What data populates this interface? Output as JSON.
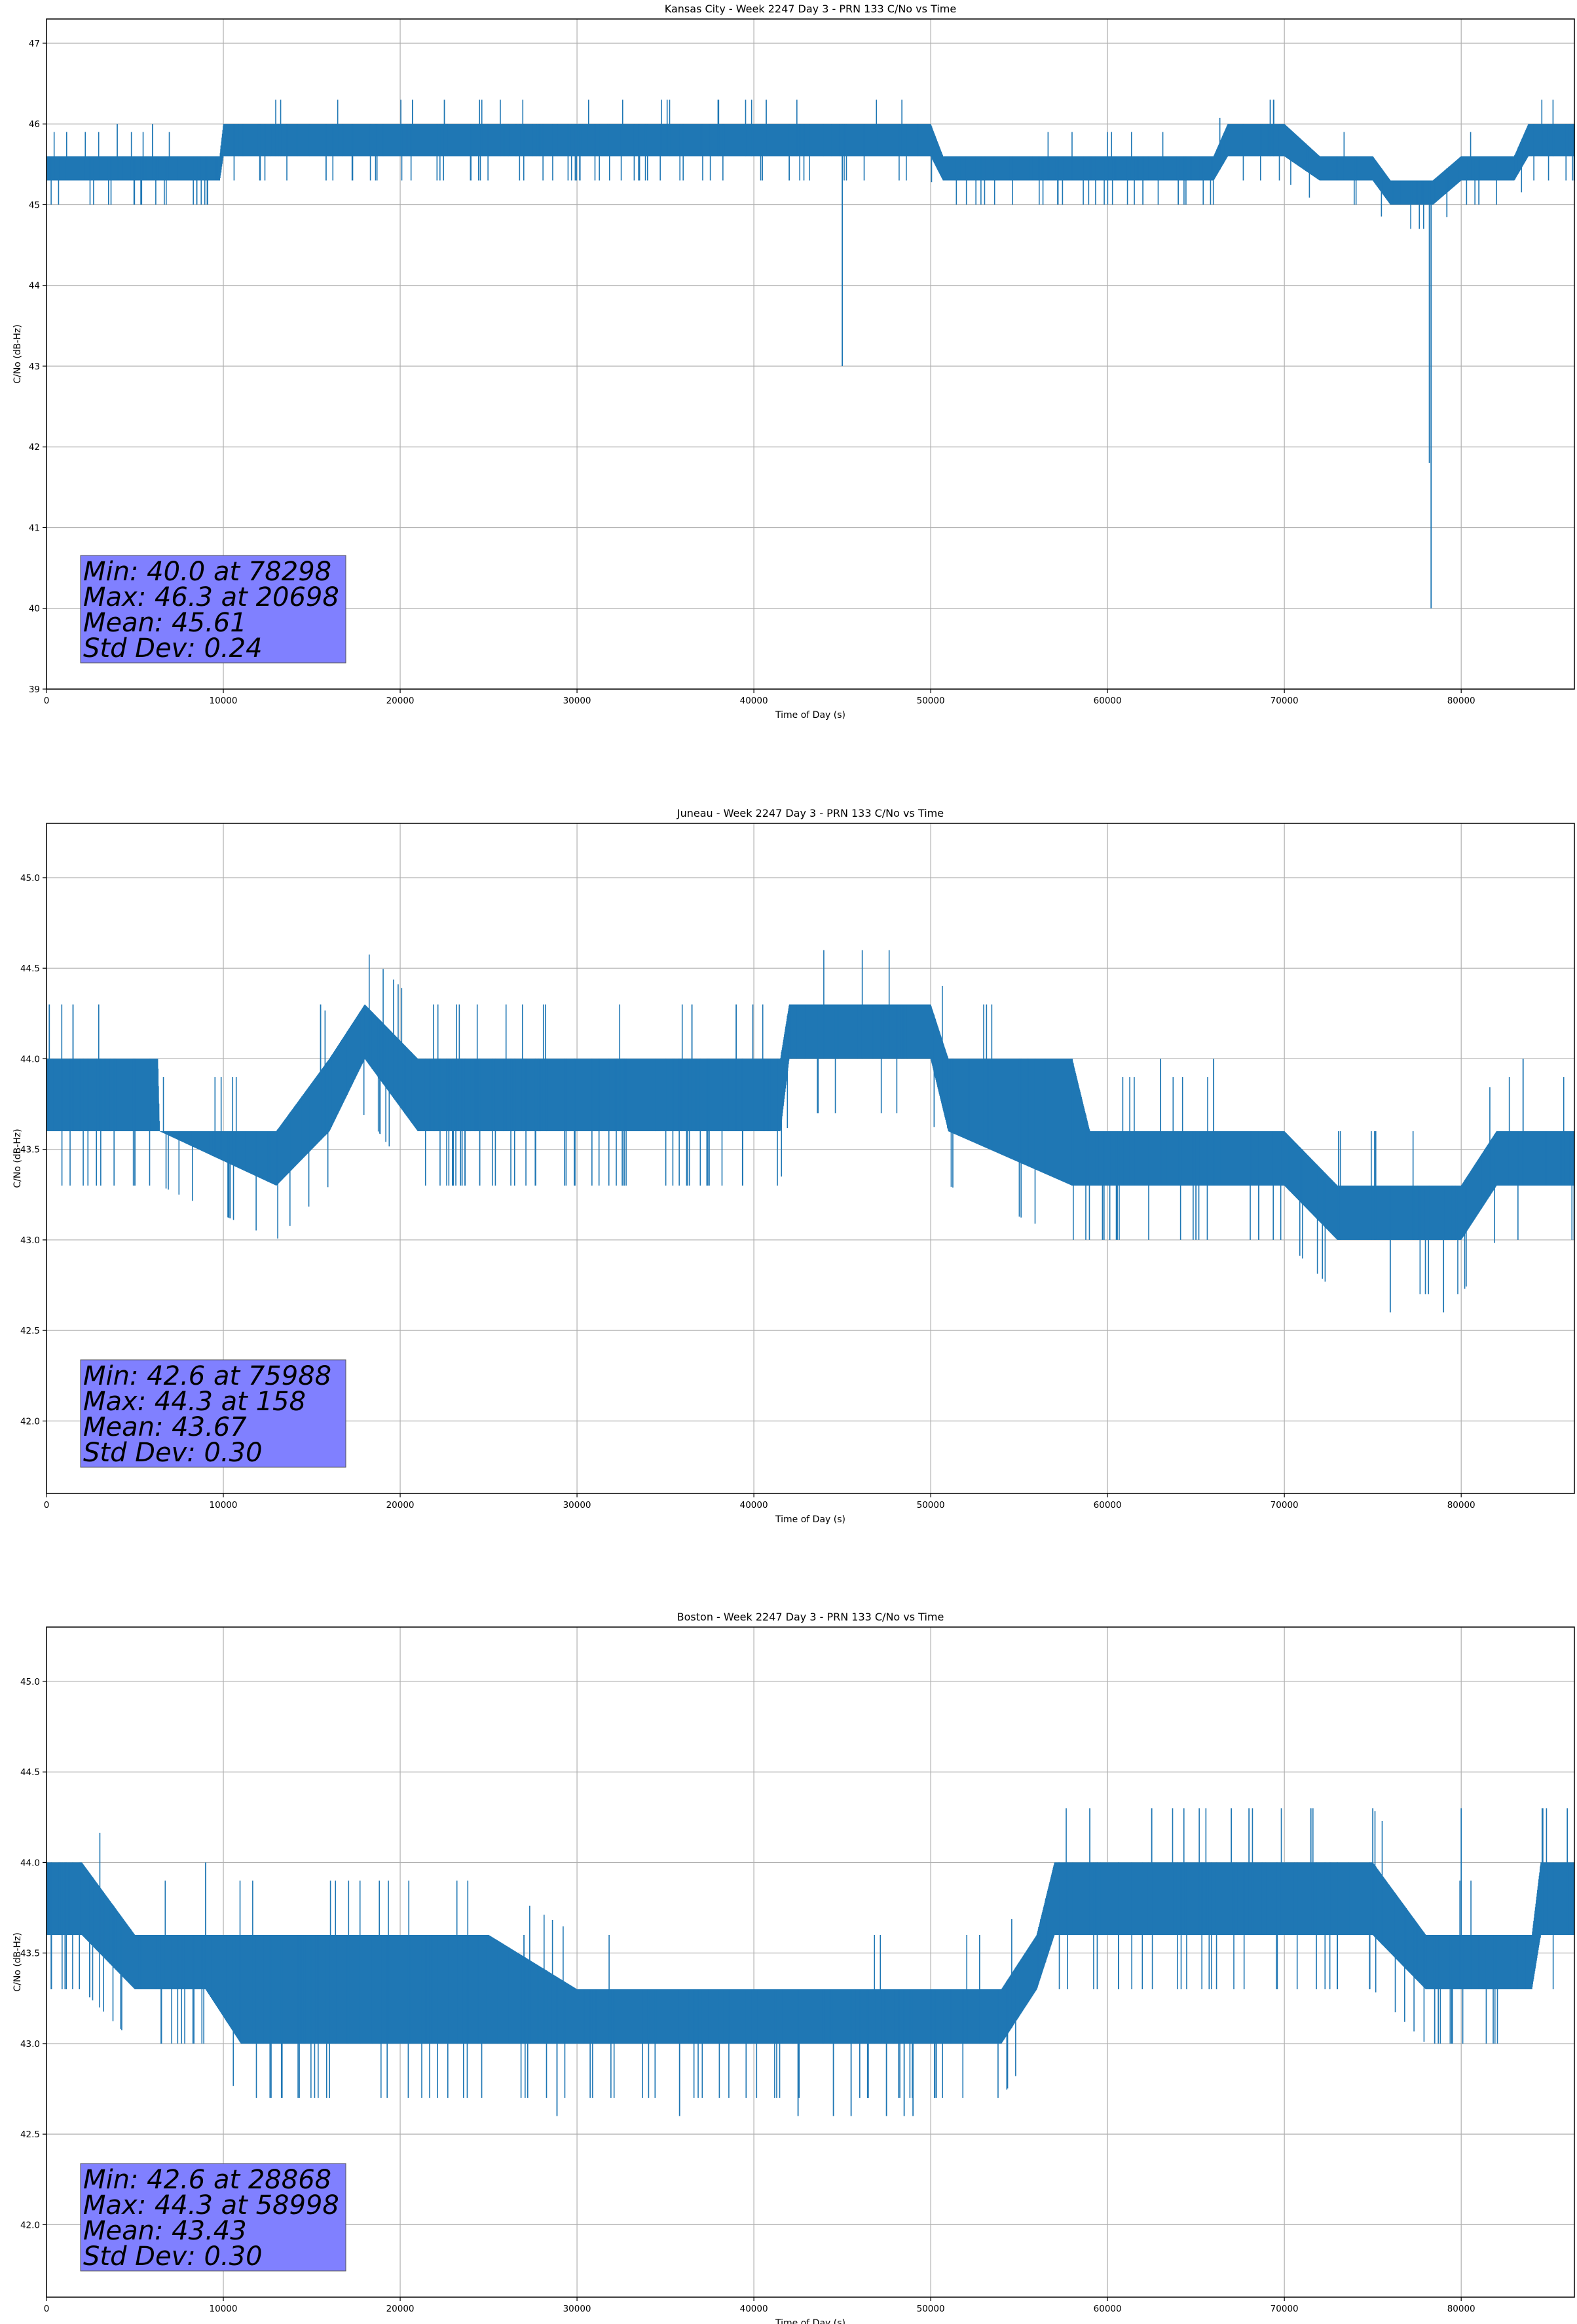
{
  "chart_data": [
    {
      "type": "line",
      "title": "Kansas City - Week 2247 Day 3 - PRN 133 C/No vs Time",
      "xlabel": "Time of Day (s)",
      "ylabel": "C/No (dB-Hz)",
      "xlim": [
        0,
        86400
      ],
      "ylim": [
        39,
        47.3
      ],
      "xticks": [
        0,
        10000,
        20000,
        30000,
        40000,
        50000,
        60000,
        70000,
        80000
      ],
      "yticks": [
        39,
        40,
        41,
        42,
        43,
        44,
        45,
        46,
        47
      ],
      "ytick_labels": [
        "39",
        "40",
        "41",
        "42",
        "43",
        "44",
        "45",
        "46",
        "47"
      ],
      "grid": true,
      "color": "#1f77b4",
      "series": [
        {
          "x": [
            0,
            5000,
            9800,
            10000,
            20000,
            30000,
            40000,
            44900,
            45000,
            45100,
            50000,
            50700,
            55000,
            60000,
            66000,
            66800,
            70000,
            72000,
            75000,
            76000,
            78298,
            78400,
            80000,
            83000,
            83800,
            86400
          ],
          "y": [
            45.5,
            45.5,
            45.5,
            45.8,
            45.8,
            45.8,
            45.8,
            45.8,
            43.0,
            45.8,
            45.8,
            45.5,
            45.5,
            45.5,
            45.5,
            45.8,
            45.8,
            45.5,
            45.5,
            45.2,
            40.0,
            45.2,
            45.4,
            45.5,
            45.8,
            45.8
          ],
          "upper": [
            45.6,
            45.6,
            45.6,
            46.0,
            46.0,
            46.0,
            46.0,
            46.0,
            46.0,
            46.0,
            46.0,
            45.6,
            45.6,
            45.6,
            45.6,
            46.0,
            46.0,
            45.6,
            45.6,
            45.3,
            45.3,
            45.3,
            45.6,
            45.6,
            46.0,
            46.0
          ],
          "lower": [
            45.3,
            45.3,
            45.3,
            45.6,
            45.6,
            45.6,
            45.6,
            45.6,
            45.6,
            45.6,
            45.6,
            45.3,
            45.3,
            45.3,
            45.3,
            45.6,
            45.6,
            45.3,
            45.3,
            45.0,
            45.0,
            45.0,
            45.3,
            45.3,
            45.6,
            45.6
          ],
          "spikes_up": [
            [
              20698,
              46.3
            ],
            [
              22500,
              46.3
            ],
            [
              40700,
              46.3
            ],
            [
              69200,
              46.3
            ],
            [
              69400,
              46.3
            ],
            [
              4000,
              46.0
            ],
            [
              6000,
              46.0
            ],
            [
              57000,
              45.6
            ],
            [
              74000,
              45.6
            ]
          ],
          "spikes_down": [
            [
              45000,
              43.0
            ],
            [
              78298,
              40.0
            ],
            [
              78200,
              41.8
            ],
            [
              24000,
              45.3
            ],
            [
              42000,
              45.3
            ],
            [
              57200,
              45.0
            ],
            [
              62000,
              45.0
            ],
            [
              64000,
              45.0
            ],
            [
              81000,
              45.0
            ]
          ]
        }
      ],
      "annotation": [
        "Min: 40.0 at 78298",
        "Max: 46.3 at 20698",
        "Mean: 45.61",
        "Std Dev: 0.24"
      ]
    },
    {
      "type": "line",
      "title": "Juneau - Week 2247 Day 3 - PRN 133 C/No vs Time",
      "xlabel": "Time of Day (s)",
      "ylabel": "C/No (dB-Hz)",
      "xlim": [
        0,
        86400
      ],
      "ylim": [
        41.6,
        45.3
      ],
      "xticks": [
        0,
        10000,
        20000,
        30000,
        40000,
        50000,
        60000,
        70000,
        80000
      ],
      "yticks": [
        42.0,
        42.5,
        43.0,
        43.5,
        44.0,
        44.5,
        45.0
      ],
      "ytick_labels": [
        "42.0",
        "42.5",
        "43.0",
        "43.5",
        "44.0",
        "44.5",
        "45.0"
      ],
      "grid": true,
      "color": "#1f77b4",
      "series": [
        {
          "x": [
            0,
            6300,
            6400,
            13000,
            16000,
            18000,
            21000,
            30000,
            40000,
            41500,
            42000,
            50000,
            51000,
            58000,
            59000,
            65000,
            70000,
            73000,
            76000,
            80000,
            82000,
            86400
          ],
          "y": [
            43.8,
            43.8,
            43.6,
            43.5,
            43.8,
            44.1,
            43.8,
            43.8,
            43.8,
            43.8,
            44.1,
            44.1,
            43.8,
            43.6,
            43.5,
            43.5,
            43.5,
            43.3,
            43.2,
            43.2,
            43.5,
            43.5
          ],
          "upper": [
            44.0,
            44.0,
            43.6,
            43.6,
            44.0,
            44.3,
            44.0,
            44.0,
            44.0,
            44.0,
            44.3,
            44.3,
            44.0,
            44.0,
            43.6,
            43.6,
            43.6,
            43.3,
            43.3,
            43.3,
            43.6,
            43.6
          ],
          "lower": [
            43.6,
            43.6,
            43.6,
            43.3,
            43.6,
            44.0,
            43.6,
            43.6,
            43.6,
            43.6,
            44.0,
            44.0,
            43.6,
            43.3,
            43.3,
            43.3,
            43.3,
            43.0,
            43.0,
            43.0,
            43.3,
            43.3
          ],
          "spikes_up": [
            [
              158,
              44.3
            ],
            [
              1500,
              44.3
            ],
            [
              15500,
              44.3
            ],
            [
              36500,
              44.3
            ],
            [
              39000,
              44.3
            ],
            [
              55500,
              44.0
            ],
            [
              63000,
              44.0
            ],
            [
              66000,
              44.0
            ],
            [
              83500,
              44.0
            ]
          ],
          "spikes_down": [
            [
              5000,
              43.3
            ],
            [
              23500,
              43.3
            ],
            [
              24500,
              43.3
            ],
            [
              58000,
              43.3
            ],
            [
              59800,
              43.0
            ],
            [
              60500,
              43.0
            ],
            [
              65000,
              43.0
            ],
            [
              75988,
              42.6
            ],
            [
              79000,
              42.6
            ]
          ]
        }
      ],
      "annotation": [
        "Min: 42.6 at 75988",
        "Max: 44.3 at 158",
        "Mean: 43.67",
        "Std Dev: 0.30"
      ]
    },
    {
      "type": "line",
      "title": "Boston - Week 2247 Day 3 - PRN 133 C/No vs Time",
      "xlabel": "Time of Day (s)",
      "ylabel": "C/No (dB-Hz)",
      "xlim": [
        0,
        86400
      ],
      "ylim": [
        41.6,
        45.3
      ],
      "xticks": [
        0,
        10000,
        20000,
        30000,
        40000,
        50000,
        60000,
        70000,
        80000
      ],
      "yticks": [
        42.0,
        42.5,
        43.0,
        43.5,
        44.0,
        44.5,
        45.0
      ],
      "ytick_labels": [
        "42.0",
        "42.5",
        "43.0",
        "43.5",
        "44.0",
        "44.5",
        "45.0"
      ],
      "grid": true,
      "color": "#1f77b4",
      "series": [
        {
          "x": [
            0,
            2000,
            5000,
            9000,
            11000,
            20000,
            25000,
            30000,
            35000,
            40000,
            50000,
            54000,
            56000,
            57000,
            60000,
            70000,
            75000,
            78000,
            84000,
            84500,
            86400
          ],
          "y": [
            43.8,
            43.8,
            43.5,
            43.5,
            43.3,
            43.3,
            43.3,
            43.2,
            43.2,
            43.2,
            43.2,
            43.2,
            43.5,
            43.8,
            43.8,
            43.8,
            43.8,
            43.5,
            43.5,
            43.8,
            43.8
          ],
          "upper": [
            44.0,
            44.0,
            43.6,
            43.6,
            43.6,
            43.6,
            43.6,
            43.3,
            43.3,
            43.3,
            43.3,
            43.3,
            43.6,
            44.0,
            44.0,
            44.0,
            44.0,
            43.6,
            43.6,
            44.0,
            44.0
          ],
          "lower": [
            43.6,
            43.6,
            43.3,
            43.3,
            43.0,
            43.0,
            43.0,
            43.0,
            43.0,
            43.0,
            43.0,
            43.0,
            43.3,
            43.6,
            43.6,
            43.6,
            43.6,
            43.3,
            43.3,
            43.6,
            43.6
          ],
          "spikes_up": [
            [
              9000,
              44.0
            ],
            [
              58998,
              44.3
            ],
            [
              62500,
              44.3
            ],
            [
              67000,
              44.3
            ],
            [
              68000,
              44.3
            ],
            [
              71500,
              44.3
            ],
            [
              75000,
              44.3
            ],
            [
              80000,
              44.3
            ],
            [
              86000,
              44.3
            ],
            [
              17000,
              43.6
            ],
            [
              27000,
              43.6
            ]
          ],
          "spikes_down": [
            [
              6500,
              43.0
            ],
            [
              28868,
              42.6
            ],
            [
              35800,
              42.6
            ],
            [
              42500,
              42.6
            ],
            [
              44500,
              42.6
            ],
            [
              45500,
              42.6
            ],
            [
              47500,
              42.6
            ],
            [
              48500,
              42.6
            ],
            [
              49000,
              42.6
            ],
            [
              78500,
              43.0
            ],
            [
              79500,
              43.0
            ]
          ]
        }
      ],
      "annotation": [
        "Min: 42.6 at 28868",
        "Max: 44.3 at 58998",
        "Mean: 43.43",
        "Std Dev: 0.30"
      ]
    }
  ]
}
